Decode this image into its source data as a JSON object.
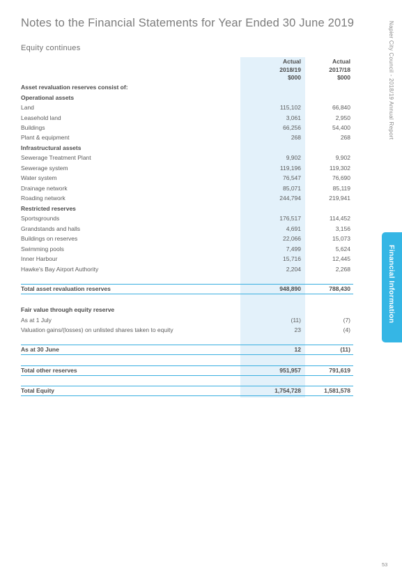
{
  "page": {
    "title": "Notes to the Financial Statements for Year Ended 30 June 2019",
    "subtitle": "Equity continues",
    "side_report": "Napier City Council - 2018/19 Annual Report",
    "side_tab": "Financial Information",
    "page_number": "53"
  },
  "table": {
    "columns": [
      {
        "line1": "Actual",
        "line2": "2018/19",
        "line3": "$000"
      },
      {
        "line1": "Actual",
        "line2": "2017/18",
        "line3": "$000"
      }
    ],
    "rows": [
      {
        "label": "Asset revaluation reserves consist of:",
        "v1": "",
        "v2": "",
        "type": "head"
      },
      {
        "label": "Operational assets",
        "v1": "",
        "v2": "",
        "type": "head"
      },
      {
        "label": "Land",
        "v1": "115,102",
        "v2": "66,840",
        "type": "row"
      },
      {
        "label": "Leasehold land",
        "v1": "3,061",
        "v2": "2,950",
        "type": "row"
      },
      {
        "label": "Buildings",
        "v1": "66,256",
        "v2": "54,400",
        "type": "row"
      },
      {
        "label": "Plant & equipment",
        "v1": "268",
        "v2": "268",
        "type": "row"
      },
      {
        "label": "Infrastructural assets",
        "v1": "",
        "v2": "",
        "type": "head"
      },
      {
        "label": "Sewerage Treatment Plant",
        "v1": "9,902",
        "v2": "9,902",
        "type": "row"
      },
      {
        "label": "Sewerage system",
        "v1": "119,196",
        "v2": "119,302",
        "type": "row"
      },
      {
        "label": "Water system",
        "v1": "76,547",
        "v2": "76,690",
        "type": "row"
      },
      {
        "label": "Drainage network",
        "v1": "85,071",
        "v2": "85,119",
        "type": "row"
      },
      {
        "label": "Roading network",
        "v1": "244,794",
        "v2": "219,941",
        "type": "row"
      },
      {
        "label": "Restricted reserves",
        "v1": "",
        "v2": "",
        "type": "head"
      },
      {
        "label": "Sportsgrounds",
        "v1": "176,517",
        "v2": "114,452",
        "type": "row"
      },
      {
        "label": "Grandstands and halls",
        "v1": "4,691",
        "v2": "3,156",
        "type": "row"
      },
      {
        "label": "Buildings on reserves",
        "v1": "22,066",
        "v2": "15,073",
        "type": "row"
      },
      {
        "label": "Swimming pools",
        "v1": "7,499",
        "v2": "5,624",
        "type": "row"
      },
      {
        "label": "Inner Harbour",
        "v1": "15,716",
        "v2": "12,445",
        "type": "row"
      },
      {
        "label": "Hawke's Bay Airport Authority",
        "v1": "2,204",
        "v2": "2,268",
        "type": "row"
      },
      {
        "label": "Total asset revaluation reserves",
        "v1": "948,890",
        "v2": "788,430",
        "type": "total"
      },
      {
        "label": "Fair value through equity reserve",
        "v1": "",
        "v2": "",
        "type": "head"
      },
      {
        "label": "As at 1 July",
        "v1": "(11)",
        "v2": "(7)",
        "type": "row"
      },
      {
        "label": "Valuation gains/(losses) on unlisted shares taken to equity",
        "v1": "23",
        "v2": "(4)",
        "type": "row"
      },
      {
        "label": "As at 30 June",
        "v1": "12",
        "v2": "(11)",
        "type": "total"
      },
      {
        "label": "Total other reserves",
        "v1": "951,957",
        "v2": "791,619",
        "type": "total"
      },
      {
        "label": "Total Equity",
        "v1": "1,754,728",
        "v2": "1,581,578",
        "type": "total"
      }
    ]
  }
}
